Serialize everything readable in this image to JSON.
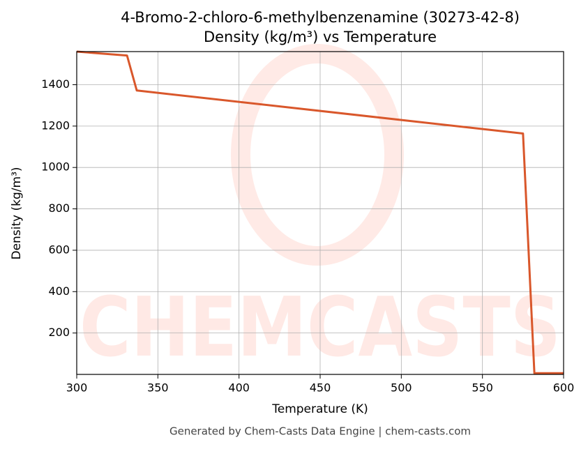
{
  "chart_data": {
    "type": "line",
    "title": "4-Bromo-2-chloro-6-methylbenzenamine (30273-42-8)",
    "subtitle": "Density (kg/m³) vs Temperature",
    "x_label": "Temperature (K)",
    "y_label": "Density (kg/m³)",
    "watermark": "CHEMCASTS",
    "footer": "Generated by Chem-Casts Data Engine | chem-casts.com",
    "x": [
      300,
      331,
      337,
      575,
      582,
      600
    ],
    "series": [
      {
        "name": "Density",
        "color": "#d9572b",
        "values": [
          1560,
          1541,
          1372,
          1164,
          6,
          6
        ]
      }
    ],
    "xlim": [
      300,
      600
    ],
    "xticks": [
      300,
      350,
      400,
      450,
      500,
      550,
      600
    ],
    "ylim": [
      0,
      1560
    ],
    "yticks": [
      200,
      400,
      600,
      800,
      1000,
      1200,
      1400
    ],
    "grid": true
  }
}
